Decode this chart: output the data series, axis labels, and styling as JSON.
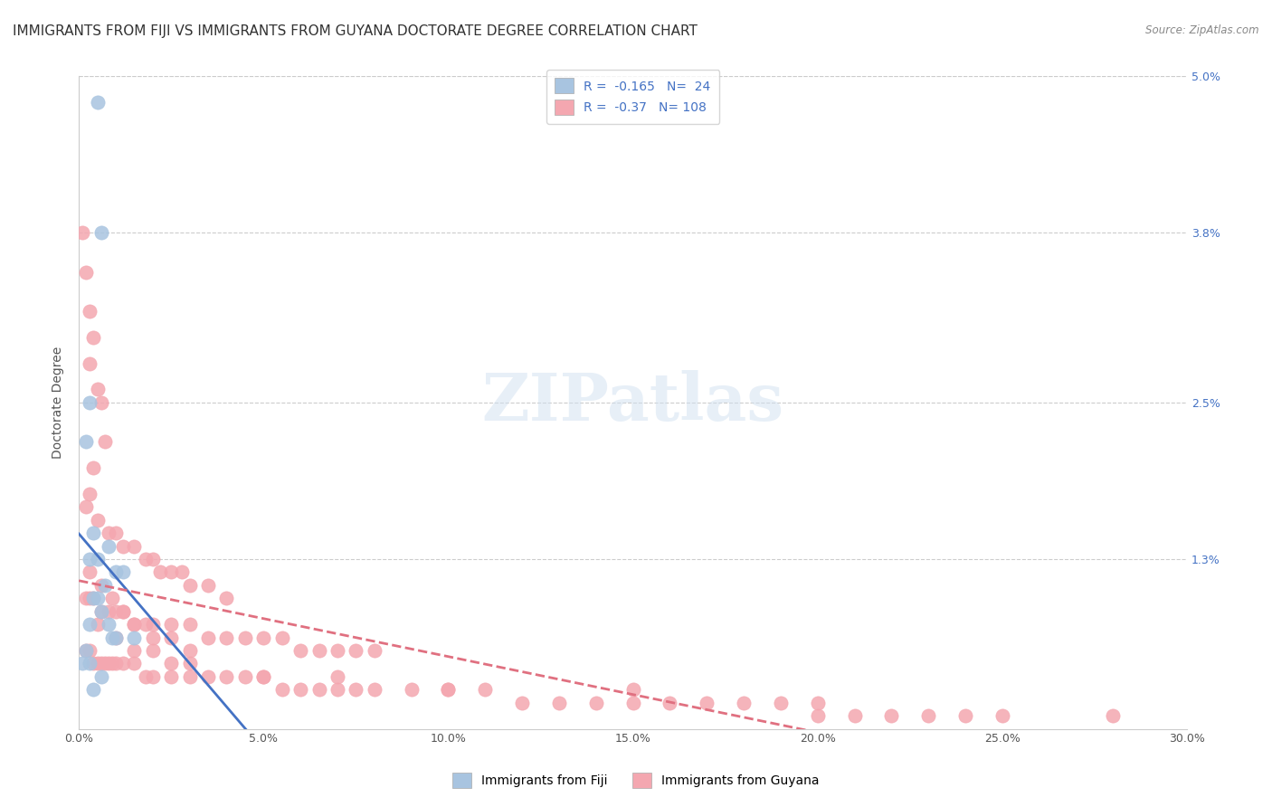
{
  "title": "IMMIGRANTS FROM FIJI VS IMMIGRANTS FROM GUYANA DOCTORATE DEGREE CORRELATION CHART",
  "source": "Source: ZipAtlas.com",
  "xlabel": "",
  "ylabel": "Doctorate Degree",
  "xlim": [
    0.0,
    0.3
  ],
  "ylim": [
    0.0,
    0.05
  ],
  "xticks": [
    0.0,
    0.05,
    0.1,
    0.15,
    0.2,
    0.25,
    0.3
  ],
  "xticklabels": [
    "0.0%",
    "5.0%",
    "10.0%",
    "15.0%",
    "20.0%",
    "25.0%",
    "30.0%"
  ],
  "yticks": [
    0.0,
    0.013,
    0.025,
    0.038,
    0.05
  ],
  "yticklabels": [
    "",
    "1.3%",
    "2.5%",
    "3.8%",
    "5.0%"
  ],
  "right_ytick_color": "#4472c4",
  "fiji_color": "#a8c4e0",
  "guyana_color": "#f4a7b0",
  "fiji_line_color": "#4472c4",
  "guyana_line_color": "#e07080",
  "fiji_R": -0.165,
  "fiji_N": 24,
  "guyana_R": -0.37,
  "guyana_N": 108,
  "fiji_scatter_x": [
    0.005,
    0.006,
    0.003,
    0.002,
    0.004,
    0.008,
    0.003,
    0.005,
    0.01,
    0.012,
    0.007,
    0.004,
    0.005,
    0.006,
    0.003,
    0.008,
    0.009,
    0.015,
    0.01,
    0.002,
    0.001,
    0.003,
    0.006,
    0.004
  ],
  "fiji_scatter_y": [
    0.048,
    0.038,
    0.025,
    0.022,
    0.015,
    0.014,
    0.013,
    0.013,
    0.012,
    0.012,
    0.011,
    0.01,
    0.01,
    0.009,
    0.008,
    0.008,
    0.007,
    0.007,
    0.007,
    0.006,
    0.005,
    0.005,
    0.004,
    0.003
  ],
  "guyana_scatter_x": [
    0.001,
    0.002,
    0.003,
    0.004,
    0.003,
    0.005,
    0.006,
    0.007,
    0.004,
    0.003,
    0.002,
    0.005,
    0.008,
    0.01,
    0.012,
    0.015,
    0.018,
    0.02,
    0.022,
    0.025,
    0.028,
    0.03,
    0.035,
    0.04,
    0.002,
    0.003,
    0.004,
    0.006,
    0.008,
    0.01,
    0.012,
    0.015,
    0.018,
    0.02,
    0.025,
    0.03,
    0.035,
    0.04,
    0.045,
    0.05,
    0.055,
    0.06,
    0.065,
    0.07,
    0.075,
    0.08,
    0.002,
    0.003,
    0.004,
    0.005,
    0.006,
    0.007,
    0.008,
    0.009,
    0.01,
    0.012,
    0.015,
    0.018,
    0.02,
    0.025,
    0.03,
    0.035,
    0.04,
    0.045,
    0.05,
    0.055,
    0.06,
    0.065,
    0.07,
    0.075,
    0.08,
    0.09,
    0.1,
    0.11,
    0.12,
    0.13,
    0.14,
    0.15,
    0.16,
    0.17,
    0.18,
    0.19,
    0.2,
    0.21,
    0.22,
    0.23,
    0.24,
    0.25,
    0.005,
    0.01,
    0.015,
    0.02,
    0.025,
    0.03,
    0.05,
    0.07,
    0.1,
    0.15,
    0.2,
    0.28,
    0.003,
    0.006,
    0.009,
    0.012,
    0.015,
    0.02,
    0.025,
    0.03
  ],
  "guyana_scatter_y": [
    0.038,
    0.035,
    0.032,
    0.03,
    0.028,
    0.026,
    0.025,
    0.022,
    0.02,
    0.018,
    0.017,
    0.016,
    0.015,
    0.015,
    0.014,
    0.014,
    0.013,
    0.013,
    0.012,
    0.012,
    0.012,
    0.011,
    0.011,
    0.01,
    0.01,
    0.01,
    0.01,
    0.009,
    0.009,
    0.009,
    0.009,
    0.008,
    0.008,
    0.008,
    0.008,
    0.008,
    0.007,
    0.007,
    0.007,
    0.007,
    0.007,
    0.006,
    0.006,
    0.006,
    0.006,
    0.006,
    0.006,
    0.006,
    0.005,
    0.005,
    0.005,
    0.005,
    0.005,
    0.005,
    0.005,
    0.005,
    0.005,
    0.004,
    0.004,
    0.004,
    0.004,
    0.004,
    0.004,
    0.004,
    0.004,
    0.003,
    0.003,
    0.003,
    0.003,
    0.003,
    0.003,
    0.003,
    0.003,
    0.003,
    0.002,
    0.002,
    0.002,
    0.002,
    0.002,
    0.002,
    0.002,
    0.002,
    0.001,
    0.001,
    0.001,
    0.001,
    0.001,
    0.001,
    0.008,
    0.007,
    0.006,
    0.006,
    0.005,
    0.005,
    0.004,
    0.004,
    0.003,
    0.003,
    0.002,
    0.001,
    0.012,
    0.011,
    0.01,
    0.009,
    0.008,
    0.007,
    0.007,
    0.006
  ],
  "watermark": "ZIPatlas",
  "background_color": "#ffffff",
  "grid_color": "#cccccc",
  "title_fontsize": 11,
  "axis_label_fontsize": 10,
  "tick_fontsize": 9,
  "legend_fontsize": 10
}
